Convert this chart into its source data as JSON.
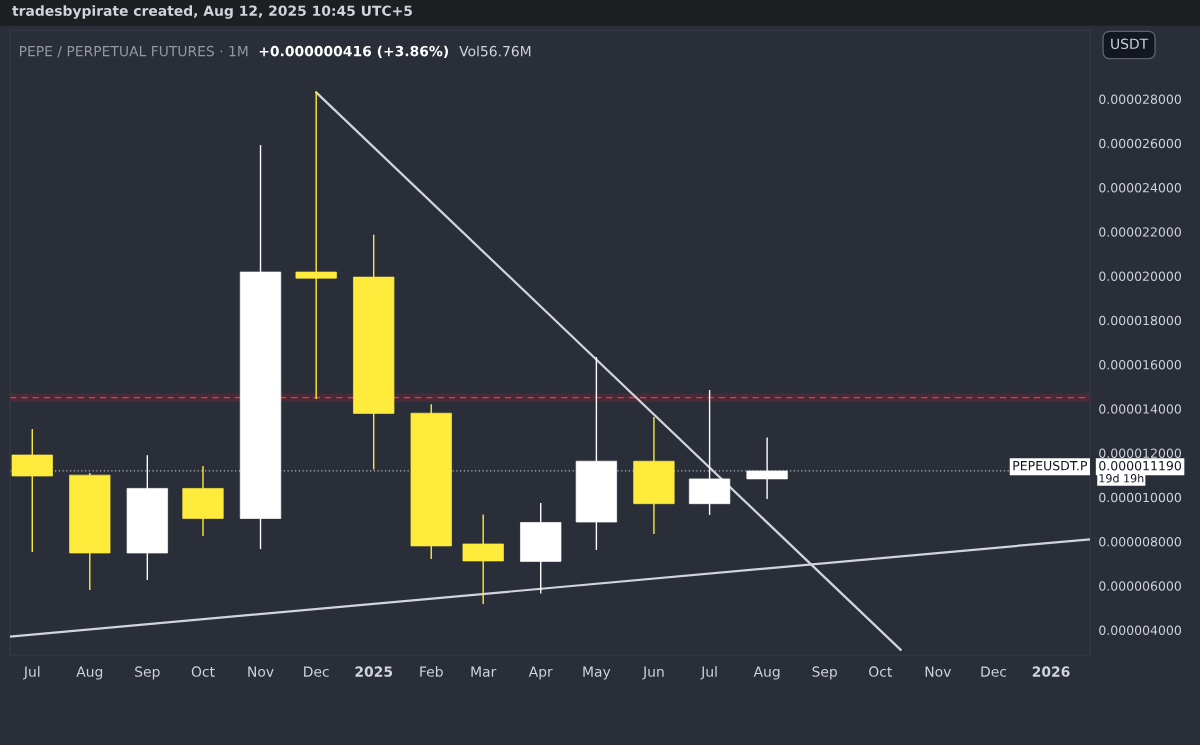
{
  "chart_data": {
    "type": "candlestick",
    "title": "PEPE / PERPETUAL FUTURES · 1M",
    "subtitle": "tradesbypirate created, Aug 12, 2025 10:45 UTC+5",
    "ylabel": "USDT",
    "annotations": [
      "+0.000000416 (+3.86%)",
      "Vol56.76M",
      {
        "text": "PEPEUSDT.P",
        "y": 1.119e-05
      },
      "19d 19h"
    ],
    "x": [
      "2024-07",
      "2024-08",
      "2024-09",
      "2024-10",
      "2024-11",
      "2024-12",
      "2025-01",
      "2025-02",
      "2025-03",
      "2025-04",
      "2025-05",
      "2025-06",
      "2025-07",
      "2025-08"
    ],
    "ohlc": [
      [
        1.191e-05,
        1.308e-05,
        7.53e-06,
        1.096e-05
      ],
      [
        1.1e-05,
        1.11e-05,
        5.81e-06,
        7.48e-06
      ],
      [
        7.48e-06,
        1.19e-05,
        6.26e-06,
        1.04e-05
      ],
      [
        1.04e-05,
        1.141e-05,
        8.25e-06,
        9.04e-06
      ],
      [
        9.04e-06,
        2.592e-05,
        7.66e-06,
        2.018e-05
      ],
      [
        2.018e-05,
        2.834e-05,
        1.444e-05,
        1.99e-05
      ],
      [
        1.995e-05,
        2.187e-05,
        1.125e-05,
        1.379e-05
      ],
      [
        1.38e-05,
        1.42e-05,
        7.21e-06,
        7.8e-06
      ],
      [
        7.89e-06,
        9.22e-06,
        5.18e-06,
        7.12e-06
      ],
      [
        7.1e-06,
        9.74e-06,
        5.65e-06,
        8.86e-06
      ],
      [
        8.88e-06,
        1.634e-05,
        7.62e-06,
        1.163e-05
      ],
      [
        1.163e-05,
        1.363e-05,
        8.34e-06,
        9.71e-06
      ],
      [
        9.71e-06,
        1.485e-05,
        9.2e-06,
        1.083e-05
      ],
      [
        1.083e-05,
        1.27e-05,
        9.92e-06,
        1.119e-05
      ]
    ],
    "colors": [
      "#ffeb3b",
      "#ffeb3b",
      "#ffffff",
      "#ffeb3b",
      "#ffffff",
      "#ffeb3b",
      "#ffeb3b",
      "#ffeb3b",
      "#ffeb3b",
      "#ffffff",
      "#ffffff",
      "#ffeb3b",
      "#ffffff",
      "#ffffff"
    ],
    "series": [
      {
        "type": "line",
        "x": [
          "2024-12-01",
          "2025-10-12"
        ],
        "values": [
          2.83e-05,
          3.1e-06
        ],
        "color": "#d1d4dc"
      },
      {
        "type": "line",
        "x": [
          "2024-06-19",
          "2026-01-22"
        ],
        "values": [
          3.7e-06,
          8.1e-06
        ],
        "color": "#d1d4dc"
      }
    ],
    "ref_lines": [
      {
        "axis": "y",
        "value": 1.45e-05,
        "color": "#f23645",
        "line_style": "dashed"
      },
      {
        "axis": "y",
        "value": 1.119e-05,
        "label": "0.000011190",
        "color": "#b2b5be",
        "line_style": "dotted"
      }
    ],
    "bands": [
      {
        "axis": "y",
        "from": 1.43e-05,
        "to": 1.47e-05,
        "color": "#4a2a36"
      }
    ],
    "xlim": [
      "2024-06-19",
      "2026-01-22"
    ],
    "xticks": [
      {
        "value": "2024-07",
        "label": "Jul"
      },
      {
        "value": "2024-08",
        "label": "Aug"
      },
      {
        "value": "2024-09",
        "label": "Sep"
      },
      {
        "value": "2024-10",
        "label": "Oct"
      },
      {
        "value": "2024-11",
        "label": "Nov"
      },
      {
        "value": "2024-12",
        "label": "Dec"
      },
      {
        "value": "2025-01",
        "label": "2025"
      },
      {
        "value": "2025-02",
        "label": "Feb"
      },
      {
        "value": "2025-03",
        "label": "Mar"
      },
      {
        "value": "2025-04",
        "label": "Apr"
      },
      {
        "value": "2025-05",
        "label": "May"
      },
      {
        "value": "2025-06",
        "label": "Jun"
      },
      {
        "value": "2025-07",
        "label": "Jul"
      },
      {
        "value": "2025-08",
        "label": "Aug"
      },
      {
        "value": "2025-09",
        "label": "Sep"
      },
      {
        "value": "2025-10",
        "label": "Oct"
      },
      {
        "value": "2025-11",
        "label": "Nov"
      },
      {
        "value": "2025-12",
        "label": "Dec"
      },
      {
        "value": "2026-01",
        "label": "2026"
      }
    ],
    "ylim": [
      2.87e-06,
      3.112e-05
    ],
    "yticks": [
      {
        "value": 4e-06,
        "label": "0.000004000"
      },
      {
        "value": 6e-06,
        "label": "0.000006000"
      },
      {
        "value": 8e-06,
        "label": "0.000008000"
      },
      {
        "value": 1e-05,
        "label": "0.000010000"
      },
      {
        "value": 1.2e-05,
        "label": "0.000012000"
      },
      {
        "value": 1.4e-05,
        "label": "0.000014000"
      },
      {
        "value": 1.6e-05,
        "label": "0.000016000"
      },
      {
        "value": 1.8e-05,
        "label": "0.000018000"
      },
      {
        "value": 2e-05,
        "label": "0.000020000"
      },
      {
        "value": 2.2e-05,
        "label": "0.000022000"
      },
      {
        "value": 2.4e-05,
        "label": "0.000024000"
      },
      {
        "value": 2.6e-05,
        "label": "0.000026000"
      },
      {
        "value": 2.8e-05,
        "label": "0.000028000"
      }
    ],
    "grid": false,
    "legend": false
  }
}
